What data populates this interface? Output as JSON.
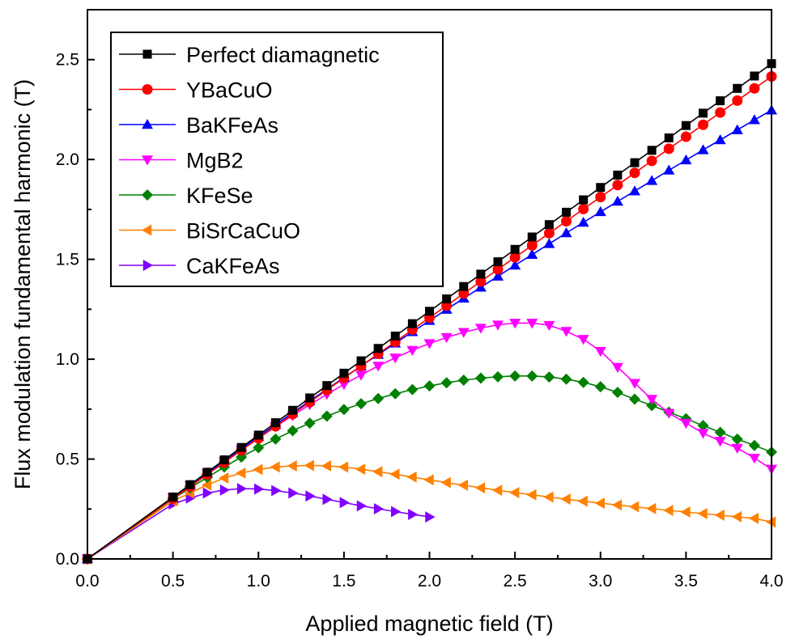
{
  "chart_data": {
    "type": "line",
    "xlabel": "Applied magnetic field (T)",
    "ylabel": "Flux modulation fundamental harmonic (T)",
    "xlim": [
      0.0,
      4.0
    ],
    "ylim": [
      0.0,
      2.75
    ],
    "xticks": [
      "0.0",
      "0.5",
      "1.0",
      "1.5",
      "2.0",
      "2.5",
      "3.0",
      "3.5",
      "4.0"
    ],
    "yticks": [
      "0.0",
      "0.5",
      "1.0",
      "1.5",
      "2.0",
      "2.5"
    ],
    "grid": false,
    "legend_position": "top-left",
    "series": [
      {
        "name": "Perfect diamagnetic",
        "color": "#000000",
        "marker": "square",
        "x": [
          0.0,
          0.5,
          0.6,
          0.7,
          0.8,
          0.9,
          1.0,
          1.1,
          1.2,
          1.3,
          1.4,
          1.5,
          1.6,
          1.7,
          1.8,
          1.9,
          2.0,
          2.1,
          2.2,
          2.3,
          2.4,
          2.5,
          2.6,
          2.7,
          2.8,
          2.9,
          3.0,
          3.1,
          3.2,
          3.3,
          3.4,
          3.5,
          3.6,
          3.7,
          3.8,
          3.9,
          4.0
        ],
        "y": [
          0.0,
          0.31,
          0.372,
          0.434,
          0.496,
          0.558,
          0.62,
          0.682,
          0.744,
          0.806,
          0.868,
          0.93,
          0.992,
          1.054,
          1.116,
          1.178,
          1.24,
          1.302,
          1.364,
          1.426,
          1.488,
          1.55,
          1.612,
          1.674,
          1.736,
          1.798,
          1.86,
          1.922,
          1.984,
          2.046,
          2.108,
          2.17,
          2.232,
          2.294,
          2.356,
          2.418,
          2.48
        ]
      },
      {
        "name": "YBaCuO",
        "color": "#ff0000",
        "marker": "circle",
        "x": [
          0.0,
          0.5,
          0.6,
          0.7,
          0.8,
          0.9,
          1.0,
          1.1,
          1.2,
          1.3,
          1.4,
          1.5,
          1.6,
          1.7,
          1.8,
          1.9,
          2.0,
          2.1,
          2.2,
          2.3,
          2.4,
          2.5,
          2.6,
          2.7,
          2.8,
          2.9,
          3.0,
          3.1,
          3.2,
          3.3,
          3.4,
          3.5,
          3.6,
          3.7,
          3.8,
          3.9,
          4.0
        ],
        "y": [
          0.0,
          0.302,
          0.362,
          0.423,
          0.483,
          0.544,
          0.604,
          0.664,
          0.725,
          0.785,
          0.846,
          0.906,
          0.966,
          1.027,
          1.087,
          1.148,
          1.208,
          1.268,
          1.329,
          1.389,
          1.45,
          1.51,
          1.57,
          1.631,
          1.691,
          1.752,
          1.812,
          1.872,
          1.933,
          1.993,
          2.054,
          2.114,
          2.174,
          2.235,
          2.295,
          2.356,
          2.416
        ]
      },
      {
        "name": "BaKFeAs",
        "color": "#0000ff",
        "marker": "triangle-up",
        "x": [
          0.0,
          0.5,
          0.6,
          0.7,
          0.8,
          0.9,
          1.0,
          1.1,
          1.2,
          1.3,
          1.4,
          1.5,
          1.6,
          1.7,
          1.8,
          1.9,
          2.0,
          2.1,
          2.2,
          2.3,
          2.4,
          2.5,
          2.6,
          2.7,
          2.8,
          2.9,
          3.0,
          3.1,
          3.2,
          3.3,
          3.4,
          3.5,
          3.6,
          3.7,
          3.8,
          3.9,
          4.0
        ],
        "y": [
          0.0,
          0.307,
          0.368,
          0.43,
          0.492,
          0.552,
          0.612,
          0.672,
          0.732,
          0.791,
          0.85,
          0.908,
          0.966,
          1.023,
          1.08,
          1.137,
          1.193,
          1.249,
          1.305,
          1.36,
          1.415,
          1.47,
          1.524,
          1.578,
          1.632,
          1.685,
          1.738,
          1.79,
          1.842,
          1.894,
          1.946,
          1.997,
          2.048,
          2.098,
          2.148,
          2.198,
          2.247
        ]
      },
      {
        "name": "MgB2",
        "color": "#ff00ff",
        "marker": "triangle-down",
        "x": [
          0.0,
          0.5,
          0.6,
          0.7,
          0.8,
          0.9,
          1.0,
          1.1,
          1.2,
          1.3,
          1.4,
          1.5,
          1.6,
          1.7,
          1.8,
          1.9,
          2.0,
          2.1,
          2.2,
          2.3,
          2.4,
          2.5,
          2.6,
          2.7,
          2.8,
          2.9,
          3.0,
          3.1,
          3.2,
          3.3,
          3.4,
          3.5,
          3.6,
          3.7,
          3.8,
          3.9,
          4.0
        ],
        "y": [
          0.0,
          0.306,
          0.367,
          0.427,
          0.487,
          0.546,
          0.605,
          0.662,
          0.718,
          0.772,
          0.824,
          0.874,
          0.921,
          0.966,
          1.007,
          1.045,
          1.079,
          1.109,
          1.135,
          1.156,
          1.172,
          1.181,
          1.181,
          1.17,
          1.14,
          1.1,
          1.04,
          0.96,
          0.88,
          0.8,
          0.73,
          0.68,
          0.63,
          0.59,
          0.555,
          0.505,
          0.45
        ]
      },
      {
        "name": "KFeSe",
        "color": "#008000",
        "marker": "diamond",
        "x": [
          0.0,
          0.5,
          0.6,
          0.7,
          0.8,
          0.9,
          1.0,
          1.1,
          1.2,
          1.3,
          1.4,
          1.5,
          1.6,
          1.7,
          1.8,
          1.9,
          2.0,
          2.1,
          2.2,
          2.3,
          2.4,
          2.5,
          2.6,
          2.7,
          2.8,
          2.9,
          3.0,
          3.1,
          3.2,
          3.3,
          3.4,
          3.5,
          3.6,
          3.7,
          3.8,
          3.9,
          4.0
        ],
        "y": [
          0.0,
          0.3,
          0.355,
          0.408,
          0.46,
          0.51,
          0.557,
          0.6,
          0.642,
          0.68,
          0.715,
          0.748,
          0.777,
          0.803,
          0.827,
          0.848,
          0.866,
          0.882,
          0.895,
          0.905,
          0.912,
          0.916,
          0.916,
          0.911,
          0.9,
          0.884,
          0.862,
          0.834,
          0.8,
          0.768,
          0.735,
          0.702,
          0.668,
          0.634,
          0.6,
          0.568,
          0.535
        ]
      },
      {
        "name": "BiSrCaCuO",
        "color": "#ff8000",
        "marker": "triangle-left",
        "x": [
          0.0,
          0.5,
          0.6,
          0.7,
          0.8,
          0.9,
          1.0,
          1.1,
          1.2,
          1.3,
          1.4,
          1.5,
          1.6,
          1.7,
          1.8,
          1.9,
          2.0,
          2.1,
          2.2,
          2.3,
          2.4,
          2.5,
          2.6,
          2.7,
          2.8,
          2.9,
          3.0,
          3.1,
          3.2,
          3.3,
          3.4,
          3.5,
          3.6,
          3.7,
          3.8,
          3.9,
          4.0
        ],
        "y": [
          0.0,
          0.29,
          0.33,
          0.37,
          0.405,
          0.43,
          0.448,
          0.46,
          0.466,
          0.468,
          0.466,
          0.46,
          0.449,
          0.437,
          0.424,
          0.41,
          0.396,
          0.382,
          0.369,
          0.356,
          0.344,
          0.332,
          0.321,
          0.31,
          0.299,
          0.289,
          0.279,
          0.27,
          0.261,
          0.252,
          0.243,
          0.235,
          0.227,
          0.219,
          0.211,
          0.203,
          0.185
        ]
      },
      {
        "name": "CaKFeAs",
        "color": "#8000ff",
        "marker": "triangle-right",
        "x": [
          0.0,
          0.5,
          0.6,
          0.7,
          0.8,
          0.9,
          1.0,
          1.1,
          1.2,
          1.3,
          1.4,
          1.5,
          1.6,
          1.7,
          1.8,
          1.9,
          2.0
        ],
        "y": [
          0.0,
          0.275,
          0.305,
          0.33,
          0.345,
          0.352,
          0.35,
          0.342,
          0.33,
          0.315,
          0.298,
          0.282,
          0.266,
          0.251,
          0.237,
          0.223,
          0.21
        ]
      }
    ]
  }
}
